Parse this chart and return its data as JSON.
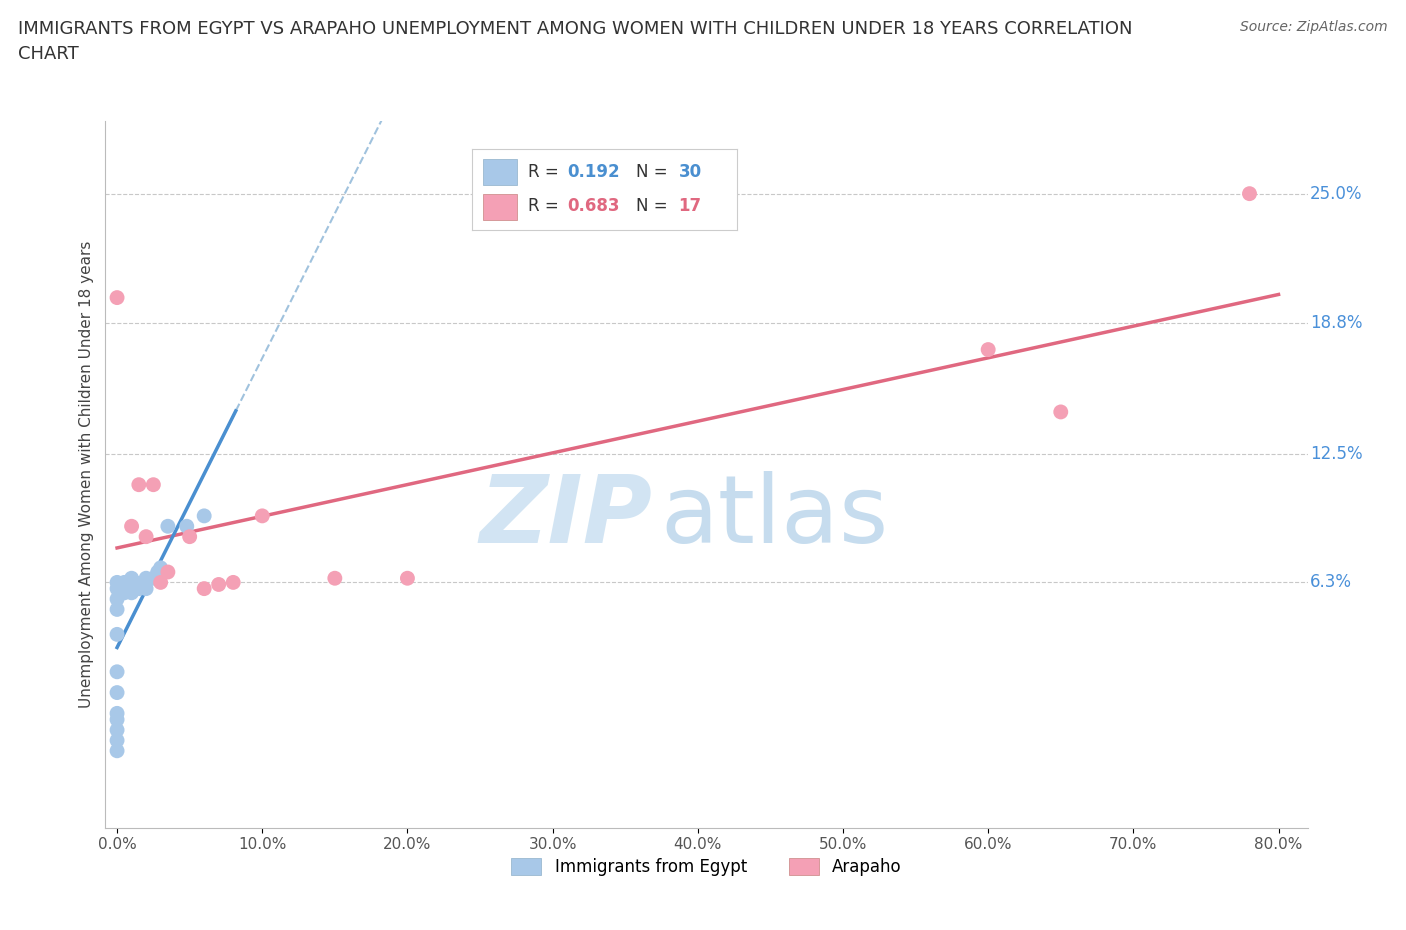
{
  "title_line1": "IMMIGRANTS FROM EGYPT VS ARAPAHO UNEMPLOYMENT AMONG WOMEN WITH CHILDREN UNDER 18 YEARS CORRELATION",
  "title_line2": "CHART",
  "source": "Source: ZipAtlas.com",
  "ylabel": "Unemployment Among Women with Children Under 18 years",
  "r_egypt": 0.192,
  "n_egypt": 30,
  "r_arapaho": 0.683,
  "n_arapaho": 17,
  "color_egypt": "#a8c8e8",
  "color_arapaho": "#f4a0b5",
  "line_color_egypt": "#4a8fd0",
  "line_color_arapaho": "#e06880",
  "dashed_line_color": "#90b8d8",
  "right_tick_color": "#4a90d9",
  "egypt_x": [
    0.0,
    0.0,
    0.0,
    0.0,
    0.0,
    0.0,
    0.0,
    0.0,
    0.0,
    0.0,
    0.0,
    0.0,
    0.005,
    0.005,
    0.008,
    0.01,
    0.01,
    0.01,
    0.012,
    0.015,
    0.015,
    0.018,
    0.02,
    0.02,
    0.025,
    0.028,
    0.03,
    0.035,
    0.048,
    0.06
  ],
  "egypt_y": [
    -0.018,
    -0.013,
    -0.008,
    -0.003,
    0.0,
    0.01,
    0.02,
    0.038,
    0.05,
    0.055,
    0.06,
    0.063,
    0.058,
    0.063,
    0.06,
    0.058,
    0.062,
    0.065,
    0.063,
    0.06,
    0.062,
    0.063,
    0.06,
    0.065,
    0.065,
    0.068,
    0.07,
    0.09,
    0.09,
    0.095
  ],
  "arapaho_x": [
    0.0,
    0.01,
    0.015,
    0.02,
    0.025,
    0.03,
    0.035,
    0.05,
    0.06,
    0.07,
    0.08,
    0.1,
    0.15,
    0.2,
    0.6,
    0.65,
    0.78
  ],
  "arapaho_y": [
    0.2,
    0.09,
    0.11,
    0.085,
    0.11,
    0.063,
    0.068,
    0.085,
    0.06,
    0.062,
    0.063,
    0.095,
    0.065,
    0.065,
    0.175,
    0.145,
    0.25
  ],
  "xlim": [
    -0.008,
    0.82
  ],
  "ylim": [
    -0.055,
    0.285
  ],
  "ytick_vals": [
    0.063,
    0.125,
    0.188,
    0.25
  ],
  "ytick_labels": [
    "6.3%",
    "12.5%",
    "18.8%",
    "25.0%"
  ],
  "xtick_vals": [
    0.0,
    0.1,
    0.2,
    0.3,
    0.4,
    0.5,
    0.6,
    0.7,
    0.8
  ],
  "xtick_labels": [
    "0.0%",
    "10.0%",
    "20.0%",
    "30.0%",
    "40.0%",
    "50.0%",
    "60.0%",
    "70.0%",
    "80.0%"
  ]
}
